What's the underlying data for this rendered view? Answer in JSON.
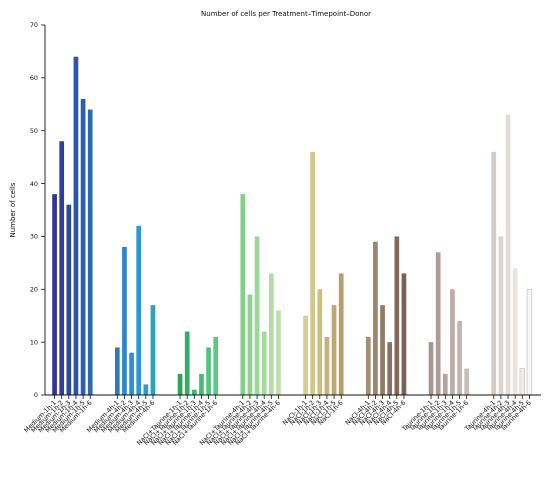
{
  "chart_data": {
    "type": "bar",
    "title": "Number of cells per Treatment–Timepoint–Donor",
    "xlabel": "",
    "ylabel": "Number of cells",
    "ylim": [
      0,
      70
    ],
    "yticks": [
      "0",
      "10",
      "20",
      "30",
      "40",
      "50",
      "60",
      "70"
    ],
    "grid": false,
    "categories": [
      "Medium-1h-1",
      "Medium-1h-2",
      "Medium-1h-3",
      "Medium-1h-4",
      "Medium-1h-5",
      "Medium-1h-6",
      "Medium-4h-1",
      "Medium-4h-2",
      "Medium-4h-3",
      "Medium-4h-4",
      "Medium-4h-5",
      "Medium-4h-6",
      "NaCl+Taurine-1h-1",
      "NaCl+Taurine-1h-2",
      "NaCl+Taurine-1h-3",
      "NaCl+Taurine-1h-4",
      "NaCl+Taurine-1h-5",
      "NaCl+Taurine-1h-6",
      "NaCl+Taurine-4h-1",
      "NaCl+Taurine-4h-2",
      "NaCl+Taurine-4h-3",
      "NaCl+Taurine-4h-4",
      "NaCl+Taurine-4h-5",
      "NaCl+Taurine-4h-6",
      "NaCl-1h-1",
      "NaCl-1h-2",
      "NaCl-1h-3",
      "NaCl-1h-4",
      "NaCl-1h-5",
      "NaCl-1h-6",
      "NaCl-4h-1",
      "NaCl-4h-2",
      "NaCl-4h-3",
      "NaCl-4h-4",
      "NaCl-4h-5",
      "NaCl-4h-6",
      "Taurine-1h-1",
      "Taurine-1h-2",
      "Taurine-1h-3",
      "Taurine-1h-4",
      "Taurine-1h-5",
      "Taurine-1h-6",
      "Taurine-4h-1",
      "Taurine-4h-2",
      "Taurine-4h-3",
      "Taurine-4h-4",
      "Taurine-4h-5",
      "Taurine-4h-6"
    ],
    "values": [
      38,
      48,
      36,
      64,
      56,
      54,
      9,
      28,
      8,
      32,
      2,
      17,
      4,
      12,
      1,
      4,
      9,
      11,
      38,
      19,
      30,
      12,
      23,
      16,
      15,
      46,
      20,
      11,
      17,
      23,
      11,
      29,
      17,
      10,
      30,
      23,
      10,
      27,
      4,
      20,
      14,
      5,
      46,
      30,
      53,
      24,
      5,
      20
    ],
    "colors": [
      "#313695",
      "#2e3f9b",
      "#2c4aa2",
      "#2a55a8",
      "#2c5fae",
      "#2e69b3",
      "#2b7bc4",
      "#2a86cf",
      "#2890d6",
      "#2a97da",
      "#289fc8",
      "#2aa5b8",
      "#2ea35a",
      "#34ae62",
      "#3db66c",
      "#45be74",
      "#4ec57c",
      "#58cb84",
      "#82d088",
      "#8ed48e",
      "#9ad896",
      "#a6db9e",
      "#b2dea6",
      "#bde1ae",
      "#d6cf8e",
      "#d2c786",
      "#ccbd80",
      "#c5b37a",
      "#bda874",
      "#b59e6e",
      "#a48f72",
      "#9b856c",
      "#927b66",
      "#8a7261",
      "#82695c",
      "#7a6057",
      "#a79590",
      "#ad9c97",
      "#b4a4a0",
      "#bbaca8",
      "#c2b4b0",
      "#c9bdb9",
      "#d4cac7",
      "#dbd3d0",
      "#e2dbd9",
      "#e9e4e2",
      "#f0ecea",
      "#f8f6f5"
    ]
  }
}
